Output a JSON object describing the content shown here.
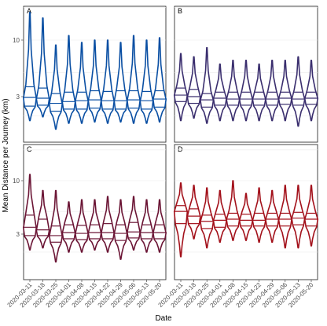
{
  "chart_data": [
    {
      "panel": "A",
      "type": "violin",
      "color": "#0a4fa3",
      "xlabel": "Date",
      "ylabel": "Mean Distance per Journey (km)",
      "yscale": "log",
      "yticks": [
        3,
        10
      ],
      "categories": [
        "2020-03-11",
        "2020-03-18",
        "2020-03-25",
        "2020-04-01",
        "2020-04-08",
        "2020-04-15",
        "2020-04-22",
        "2020-04-29",
        "2020-05-06",
        "2020-05-13",
        "2020-05-20"
      ],
      "violins": [
        {
          "min": 1.8,
          "q1": 2.45,
          "median": 2.95,
          "q3": 3.7,
          "max": 18.0
        },
        {
          "min": 1.95,
          "q1": 2.5,
          "median": 2.9,
          "q3": 3.6,
          "max": 16.0
        },
        {
          "min": 1.5,
          "q1": 2.2,
          "median": 2.6,
          "q3": 3.2,
          "max": 9.0
        },
        {
          "min": 1.7,
          "q1": 2.3,
          "median": 2.7,
          "q3": 3.3,
          "max": 11.0
        },
        {
          "min": 1.7,
          "q1": 2.3,
          "median": 2.75,
          "q3": 3.3,
          "max": 9.5
        },
        {
          "min": 1.75,
          "q1": 2.35,
          "median": 2.8,
          "q3": 3.4,
          "max": 10.0
        },
        {
          "min": 1.7,
          "q1": 2.3,
          "median": 2.75,
          "q3": 3.35,
          "max": 10.0
        },
        {
          "min": 1.75,
          "q1": 2.3,
          "median": 2.75,
          "q3": 3.4,
          "max": 9.5
        },
        {
          "min": 1.7,
          "q1": 2.35,
          "median": 2.8,
          "q3": 3.4,
          "max": 11.0
        },
        {
          "min": 1.7,
          "q1": 2.3,
          "median": 2.75,
          "q3": 3.35,
          "max": 10.0
        },
        {
          "min": 1.75,
          "q1": 2.4,
          "median": 2.85,
          "q3": 3.4,
          "max": 10.5
        }
      ]
    },
    {
      "panel": "B",
      "type": "violin",
      "color": "#3a2e6e",
      "yscale": "log",
      "categories": [
        "2020-03-11",
        "2020-03-18",
        "2020-03-25",
        "2020-04-01",
        "2020-04-08",
        "2020-04-15",
        "2020-04-22",
        "2020-04-29",
        "2020-05-06",
        "2020-05-13",
        "2020-05-20"
      ],
      "violins": [
        {
          "min": 1.8,
          "q1": 2.7,
          "median": 3.1,
          "q3": 3.6,
          "max": 7.5
        },
        {
          "min": 1.9,
          "q1": 2.6,
          "median": 3.0,
          "q3": 3.5,
          "max": 7.0
        },
        {
          "min": 1.7,
          "q1": 2.4,
          "median": 2.8,
          "q3": 3.2,
          "max": 8.5
        },
        {
          "min": 1.8,
          "q1": 2.5,
          "median": 2.9,
          "q3": 3.3,
          "max": 6.0
        },
        {
          "min": 1.8,
          "q1": 2.5,
          "median": 2.85,
          "q3": 3.3,
          "max": 6.5
        },
        {
          "min": 1.8,
          "q1": 2.5,
          "median": 2.85,
          "q3": 3.3,
          "max": 6.5
        },
        {
          "min": 1.8,
          "q1": 2.5,
          "median": 2.85,
          "q3": 3.3,
          "max": 6.0
        },
        {
          "min": 1.8,
          "q1": 2.5,
          "median": 2.85,
          "q3": 3.3,
          "max": 6.5
        },
        {
          "min": 1.8,
          "q1": 2.55,
          "median": 2.9,
          "q3": 3.3,
          "max": 6.5
        },
        {
          "min": 1.6,
          "q1": 2.5,
          "median": 2.85,
          "q3": 3.3,
          "max": 7.0
        },
        {
          "min": 1.8,
          "q1": 2.55,
          "median": 2.9,
          "q3": 3.3,
          "max": 6.5
        }
      ]
    },
    {
      "panel": "C",
      "type": "violin",
      "color": "#6b1535",
      "yscale": "log",
      "categories": [
        "2020-03-11",
        "2020-03-18",
        "2020-03-25",
        "2020-04-01",
        "2020-04-08",
        "2020-04-15",
        "2020-04-22",
        "2020-04-29",
        "2020-05-06",
        "2020-05-13",
        "2020-05-20"
      ],
      "violins": [
        {
          "min": 2.1,
          "q1": 2.9,
          "median": 3.5,
          "q3": 4.6,
          "max": 11.5
        },
        {
          "min": 2.2,
          "q1": 2.9,
          "median": 3.3,
          "q3": 4.2,
          "max": 8.0
        },
        {
          "min": 1.6,
          "q1": 2.5,
          "median": 2.9,
          "q3": 3.6,
          "max": 8.0
        },
        {
          "min": 2.0,
          "q1": 2.7,
          "median": 3.1,
          "q3": 3.7,
          "max": 6.2
        },
        {
          "min": 2.0,
          "q1": 2.65,
          "median": 3.05,
          "q3": 3.65,
          "max": 6.5
        },
        {
          "min": 2.1,
          "q1": 2.7,
          "median": 3.1,
          "q3": 3.7,
          "max": 6.5
        },
        {
          "min": 2.0,
          "q1": 2.7,
          "median": 3.1,
          "q3": 3.8,
          "max": 7.0
        },
        {
          "min": 1.7,
          "q1": 2.6,
          "median": 3.05,
          "q3": 3.7,
          "max": 6.5
        },
        {
          "min": 2.1,
          "q1": 2.75,
          "median": 3.15,
          "q3": 3.9,
          "max": 7.0
        },
        {
          "min": 2.0,
          "q1": 2.7,
          "median": 3.1,
          "q3": 3.7,
          "max": 6.5
        },
        {
          "min": 2.0,
          "q1": 2.7,
          "median": 3.1,
          "q3": 3.7,
          "max": 6.5
        }
      ]
    },
    {
      "panel": "D",
      "type": "violin",
      "color": "#a3111b",
      "yscale": "log",
      "categories": [
        "2020-03-11",
        "2020-03-18",
        "2020-03-25",
        "2020-04-01",
        "2020-04-08",
        "2020-04-15",
        "2020-04-22",
        "2020-04-29",
        "2020-05-06",
        "2020-05-13",
        "2020-05-20"
      ],
      "violins": [
        {
          "min": 1.8,
          "q1": 3.8,
          "median": 5.0,
          "q3": 5.7,
          "max": 9.5
        },
        {
          "min": 2.7,
          "q1": 3.8,
          "median": 4.5,
          "q3": 5.3,
          "max": 9.0
        },
        {
          "min": 2.2,
          "q1": 3.4,
          "median": 4.0,
          "q3": 4.6,
          "max": 8.5
        },
        {
          "min": 2.5,
          "q1": 3.5,
          "median": 4.1,
          "q3": 4.7,
          "max": 8.0
        },
        {
          "min": 2.6,
          "q1": 3.6,
          "median": 4.2,
          "q3": 4.8,
          "max": 10.0
        },
        {
          "min": 2.6,
          "q1": 3.6,
          "median": 4.1,
          "q3": 4.7,
          "max": 7.5
        },
        {
          "min": 2.5,
          "q1": 3.6,
          "median": 4.1,
          "q3": 4.8,
          "max": 8.5
        },
        {
          "min": 2.5,
          "q1": 3.6,
          "median": 4.2,
          "q3": 4.8,
          "max": 8.0
        },
        {
          "min": 2.2,
          "q1": 3.6,
          "median": 4.2,
          "q3": 4.8,
          "max": 9.0
        },
        {
          "min": 2.2,
          "q1": 3.7,
          "median": 4.3,
          "q3": 4.9,
          "max": 9.0
        },
        {
          "min": 2.3,
          "q1": 3.6,
          "median": 4.2,
          "q3": 4.8,
          "max": 9.0
        }
      ]
    }
  ],
  "axes": {
    "xlabel": "Date",
    "ylabel": "Mean Distance per Journey (km)",
    "ytick_labels": [
      "3",
      "10"
    ]
  },
  "panels": [
    {
      "tag": "A"
    },
    {
      "tag": "B"
    },
    {
      "tag": "C"
    },
    {
      "tag": "D"
    }
  ]
}
